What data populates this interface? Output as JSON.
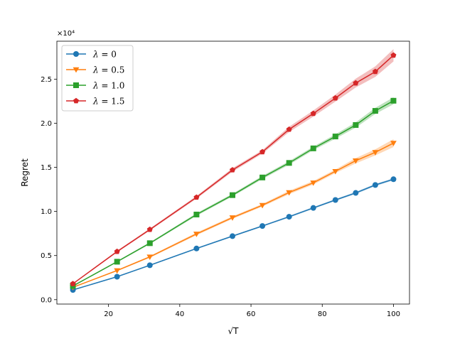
{
  "chart_data": {
    "type": "line",
    "title": "",
    "xlabel": "√T",
    "ylabel": "Regret",
    "y_offset_text": "×10⁴",
    "xlim": [
      5.5,
      104.5
    ],
    "ylim": [
      -0.05,
      2.93
    ],
    "xticks": [
      20,
      40,
      60,
      80,
      100
    ],
    "yticks": [
      0.0,
      0.5,
      1.0,
      1.5,
      2.0,
      2.5
    ],
    "xtick_labels": [
      "20",
      "40",
      "60",
      "80",
      "100"
    ],
    "ytick_labels": [
      "0.0",
      "0.5",
      "1.0",
      "1.5",
      "2.0",
      "2.5"
    ],
    "grid": false,
    "legend_position": "top-left",
    "x": [
      10,
      22.4,
      31.6,
      44.7,
      54.8,
      63.2,
      70.7,
      77.5,
      83.7,
      89.4,
      94.9,
      100
    ],
    "series": [
      {
        "name": "λ = 0",
        "label_var": "λ",
        "label_rest": " = 0",
        "color": "#1f77b4",
        "marker": "circle",
        "values": [
          0.11,
          0.26,
          0.39,
          0.58,
          0.72,
          0.835,
          0.94,
          1.04,
          1.13,
          1.21,
          1.3,
          1.365
        ],
        "band": [
          0.005,
          0.005,
          0.005,
          0.008,
          0.008,
          0.008,
          0.01,
          0.01,
          0.01,
          0.012,
          0.012,
          0.012
        ]
      },
      {
        "name": "λ = 0.5",
        "label_var": "λ",
        "label_rest": " = 0.5",
        "color": "#ff7f0e",
        "marker": "triangle-down",
        "values": [
          0.14,
          0.33,
          0.485,
          0.745,
          0.93,
          1.07,
          1.215,
          1.325,
          1.455,
          1.575,
          1.67,
          1.775
        ],
        "band": [
          0.005,
          0.008,
          0.01,
          0.015,
          0.015,
          0.015,
          0.02,
          0.02,
          0.02,
          0.03,
          0.035,
          0.045
        ]
      },
      {
        "name": "λ = 1.0",
        "label_var": "λ",
        "label_rest": " = 1.0",
        "color": "#2ca02c",
        "marker": "square",
        "values": [
          0.155,
          0.43,
          0.64,
          0.965,
          1.185,
          1.385,
          1.55,
          1.715,
          1.85,
          1.98,
          2.14,
          2.255
        ],
        "band": [
          0.005,
          0.008,
          0.01,
          0.015,
          0.015,
          0.018,
          0.02,
          0.02,
          0.025,
          0.03,
          0.035,
          0.04
        ]
      },
      {
        "name": "λ = 1.5",
        "label_var": "λ",
        "label_rest": " = 1.5",
        "color": "#d62728",
        "marker": "pentagon",
        "values": [
          0.18,
          0.545,
          0.795,
          1.16,
          1.47,
          1.675,
          1.93,
          2.11,
          2.285,
          2.455,
          2.585,
          2.77
        ],
        "band": [
          0.005,
          0.01,
          0.012,
          0.015,
          0.02,
          0.02,
          0.03,
          0.035,
          0.04,
          0.05,
          0.06,
          0.07
        ]
      }
    ]
  }
}
